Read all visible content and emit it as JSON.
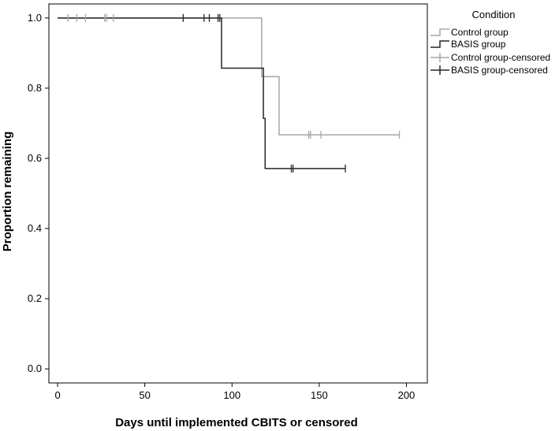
{
  "chart_data": {
    "type": "line",
    "title": "",
    "xlabel": "Days until implemented CBITS or censored",
    "ylabel": "Proportion remaining",
    "xlim": [
      -5,
      212
    ],
    "ylim": [
      -0.04,
      1.04
    ],
    "xticks": [
      0,
      50,
      100,
      150,
      200
    ],
    "xtick_labels": [
      "0",
      "50",
      "100",
      "150",
      "200"
    ],
    "yticks": [
      0.0,
      0.2,
      0.4,
      0.6,
      0.8,
      1.0
    ],
    "ytick_labels": [
      "0.0",
      "0.2",
      "0.4",
      "0.6",
      "0.8",
      "1.0"
    ],
    "grid": false,
    "legend": {
      "title": "Condition",
      "placement": "outside-right-top",
      "entries": [
        "Control group",
        "BASIS group",
        "Control group-censored",
        "BASIS group-censored"
      ]
    },
    "series": [
      {
        "name": "Control group",
        "color": "#a6a6a6",
        "step_x": [
          0,
          117,
          117,
          127,
          127,
          196
        ],
        "step_y": [
          1.0,
          1.0,
          0.833,
          0.833,
          0.667,
          0.667
        ]
      },
      {
        "name": "BASIS group",
        "color": "#262626",
        "step_x": [
          0,
          94,
          94,
          118,
          118,
          119,
          119,
          165
        ],
        "step_y": [
          1.0,
          1.0,
          0.857,
          0.857,
          0.714,
          0.714,
          0.571,
          0.571
        ]
      },
      {
        "name": "Control group-censored",
        "color": "#a6a6a6",
        "markers": [
          {
            "x": 6,
            "y": 1.0
          },
          {
            "x": 11,
            "y": 1.0
          },
          {
            "x": 16,
            "y": 1.0
          },
          {
            "x": 27,
            "y": 1.0
          },
          {
            "x": 28,
            "y": 1.0
          },
          {
            "x": 32,
            "y": 1.0
          },
          {
            "x": 144,
            "y": 0.667
          },
          {
            "x": 145,
            "y": 0.667
          },
          {
            "x": 151,
            "y": 0.667
          },
          {
            "x": 196,
            "y": 0.667
          }
        ]
      },
      {
        "name": "BASIS group-censored",
        "color": "#262626",
        "markers": [
          {
            "x": 72,
            "y": 1.0
          },
          {
            "x": 84,
            "y": 1.0
          },
          {
            "x": 87,
            "y": 1.0
          },
          {
            "x": 92,
            "y": 1.0
          },
          {
            "x": 93,
            "y": 1.0
          },
          {
            "x": 134,
            "y": 0.571
          },
          {
            "x": 135,
            "y": 0.571
          },
          {
            "x": 165,
            "y": 0.571
          }
        ]
      }
    ]
  }
}
